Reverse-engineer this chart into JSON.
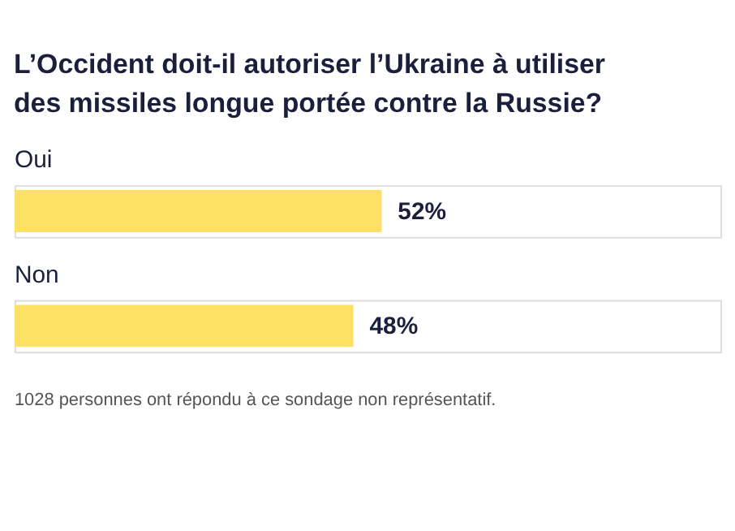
{
  "chart_data": {
    "type": "bar",
    "orientation": "horizontal",
    "relative": false,
    "title": "L’Occident doit-il autoriser l’Ukraine à utiliser des missiles longue portée contre la Russie?",
    "categories": [
      "Oui",
      "Non"
    ],
    "values": [
      52,
      48
    ],
    "value_labels": [
      "52%",
      "48%"
    ],
    "color": "#ffe066",
    "xlim": [
      0,
      100
    ],
    "tick_labels": false,
    "annotations": [
      "1028 personnes ont répondu à ce sondage non représentatif."
    ]
  }
}
